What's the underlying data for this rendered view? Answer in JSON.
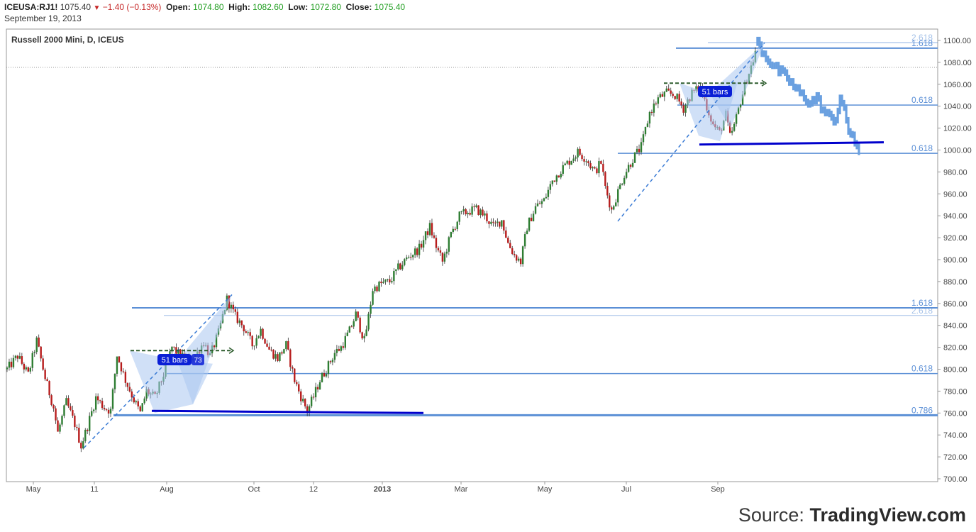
{
  "header": {
    "symbol": "ICEUSA:RJ1!",
    "last": "1075.40",
    "change": "−1.40 (−0.13%)",
    "open_label": "Open:",
    "open": "1074.80",
    "high_label": "High:",
    "high": "1082.60",
    "low_label": "Low:",
    "low": "1072.80",
    "close_label": "Close:",
    "close": "1075.40",
    "date": "September 19, 2013"
  },
  "source": {
    "prefix": "Source: ",
    "brand": "TradingView.com"
  },
  "colors": {
    "up": "#2e7d32",
    "down": "#b71c1c",
    "fib": "#5b8fd6",
    "neckline": "#0000cc",
    "projection": "#6aa0e0",
    "pattern_fill": "#a9c6f0",
    "badge": "#0a1fd6"
  },
  "chart_data": {
    "type": "candlestick",
    "title": "Russell 2000 Mini, D, ICEUS",
    "ylim": [
      700,
      1100
    ],
    "y_ticks": [
      700,
      720,
      740,
      760,
      780,
      800,
      820,
      840,
      860,
      880,
      900,
      920,
      940,
      960,
      980,
      1000,
      1020,
      1040,
      1060,
      1080,
      1100
    ],
    "y_tick_labels": [
      "700.00",
      "720.00",
      "740.00",
      "760.00",
      "780.00",
      "800.00",
      "820.00",
      "840.00",
      "860.00",
      "880.00",
      "900.00",
      "920.00",
      "940.00",
      "960.00",
      "980.00",
      "1000.00",
      "1020.00",
      "1040.00",
      "1060.00",
      "1080.00",
      "1100.00"
    ],
    "x_ticks": [
      "May",
      "11",
      "Aug",
      "Oct",
      "12",
      "2013",
      "Mar",
      "May",
      "Jul",
      "Sep"
    ],
    "current_price_line": 1075.4,
    "fib_levels": [
      {
        "label": "2.618",
        "value": 1098
      },
      {
        "label": "1.618",
        "value": 1093
      },
      {
        "label": "0.618",
        "value": 1041
      },
      {
        "label": "0.618",
        "value": 997
      },
      {
        "label": "1.618",
        "value": 856
      },
      {
        "label": "2.618",
        "value": 849
      },
      {
        "label": "0.618",
        "value": 796
      },
      {
        "label": "0.786",
        "value": 758
      }
    ],
    "badges": [
      "51 bars",
      "51 bars"
    ],
    "badge_overlap": "73",
    "price_path": [
      [
        0,
        800
      ],
      [
        5,
        812
      ],
      [
        10,
        795
      ],
      [
        14,
        826
      ],
      [
        18,
        792
      ],
      [
        22,
        765
      ],
      [
        24,
        742
      ],
      [
        28,
        770
      ],
      [
        32,
        750
      ],
      [
        35,
        730
      ],
      [
        38,
        748
      ],
      [
        42,
        774
      ],
      [
        46,
        765
      ],
      [
        49,
        762
      ],
      [
        52,
        813
      ],
      [
        56,
        790
      ],
      [
        60,
        772
      ],
      [
        63,
        760
      ],
      [
        66,
        780
      ],
      [
        70,
        774
      ],
      [
        74,
        795
      ],
      [
        78,
        820
      ],
      [
        82,
        812
      ],
      [
        86,
        809
      ],
      [
        90,
        815
      ],
      [
        93,
        825
      ],
      [
        96,
        812
      ],
      [
        100,
        833
      ],
      [
        104,
        864
      ],
      [
        108,
        848
      ],
      [
        112,
        838
      ],
      [
        116,
        822
      ],
      [
        120,
        836
      ],
      [
        124,
        818
      ],
      [
        128,
        810
      ],
      [
        132,
        822
      ],
      [
        136,
        790
      ],
      [
        139,
        775
      ],
      [
        142,
        762
      ],
      [
        145,
        775
      ],
      [
        148,
        790
      ],
      [
        151,
        800
      ],
      [
        155,
        815
      ],
      [
        158,
        820
      ],
      [
        162,
        835
      ],
      [
        165,
        850
      ],
      [
        167,
        838
      ],
      [
        169,
        826
      ],
      [
        171,
        848
      ],
      [
        173,
        873
      ],
      [
        177,
        878
      ],
      [
        181,
        880
      ],
      [
        185,
        892
      ],
      [
        190,
        903
      ],
      [
        195,
        910
      ],
      [
        200,
        930
      ],
      [
        203,
        912
      ],
      [
        206,
        898
      ],
      [
        210,
        923
      ],
      [
        214,
        940
      ],
      [
        218,
        944
      ],
      [
        222,
        946
      ],
      [
        226,
        940
      ],
      [
        230,
        930
      ],
      [
        234,
        936
      ],
      [
        237,
        915
      ],
      [
        240,
        904
      ],
      [
        243,
        898
      ],
      [
        246,
        930
      ],
      [
        250,
        948
      ],
      [
        254,
        954
      ],
      [
        258,
        972
      ],
      [
        262,
        982
      ],
      [
        266,
        990
      ],
      [
        270,
        998
      ],
      [
        274,
        992
      ],
      [
        278,
        980
      ],
      [
        281,
        989
      ],
      [
        283,
        966
      ],
      [
        286,
        945
      ],
      [
        289,
        962
      ],
      [
        292,
        978
      ],
      [
        296,
        992
      ],
      [
        300,
        1003
      ],
      [
        304,
        1034
      ],
      [
        308,
        1047
      ],
      [
        312,
        1052
      ],
      [
        316,
        1050
      ],
      [
        320,
        1038
      ],
      [
        324,
        1052
      ],
      [
        328,
        1057
      ],
      [
        331,
        1040
      ],
      [
        334,
        1023
      ],
      [
        337,
        1016
      ],
      [
        340,
        1032
      ],
      [
        342,
        1012
      ],
      [
        344,
        1022
      ],
      [
        347,
        1045
      ],
      [
        350,
        1065
      ],
      [
        353,
        1082
      ],
      [
        355,
        1098
      ]
    ],
    "projection_path": [
      [
        355,
        1098
      ],
      [
        358,
        1088
      ],
      [
        361,
        1080
      ],
      [
        365,
        1072
      ],
      [
        369,
        1066
      ],
      [
        372,
        1058
      ],
      [
        376,
        1050
      ],
      [
        380,
        1043
      ],
      [
        383,
        1048
      ],
      [
        386,
        1036
      ],
      [
        389,
        1030
      ],
      [
        392,
        1028
      ],
      [
        394,
        1048
      ],
      [
        396,
        1035
      ],
      [
        398,
        1018
      ],
      [
        400,
        1014
      ],
      [
        402,
        1000
      ],
      [
        404,
        992
      ]
    ]
  }
}
